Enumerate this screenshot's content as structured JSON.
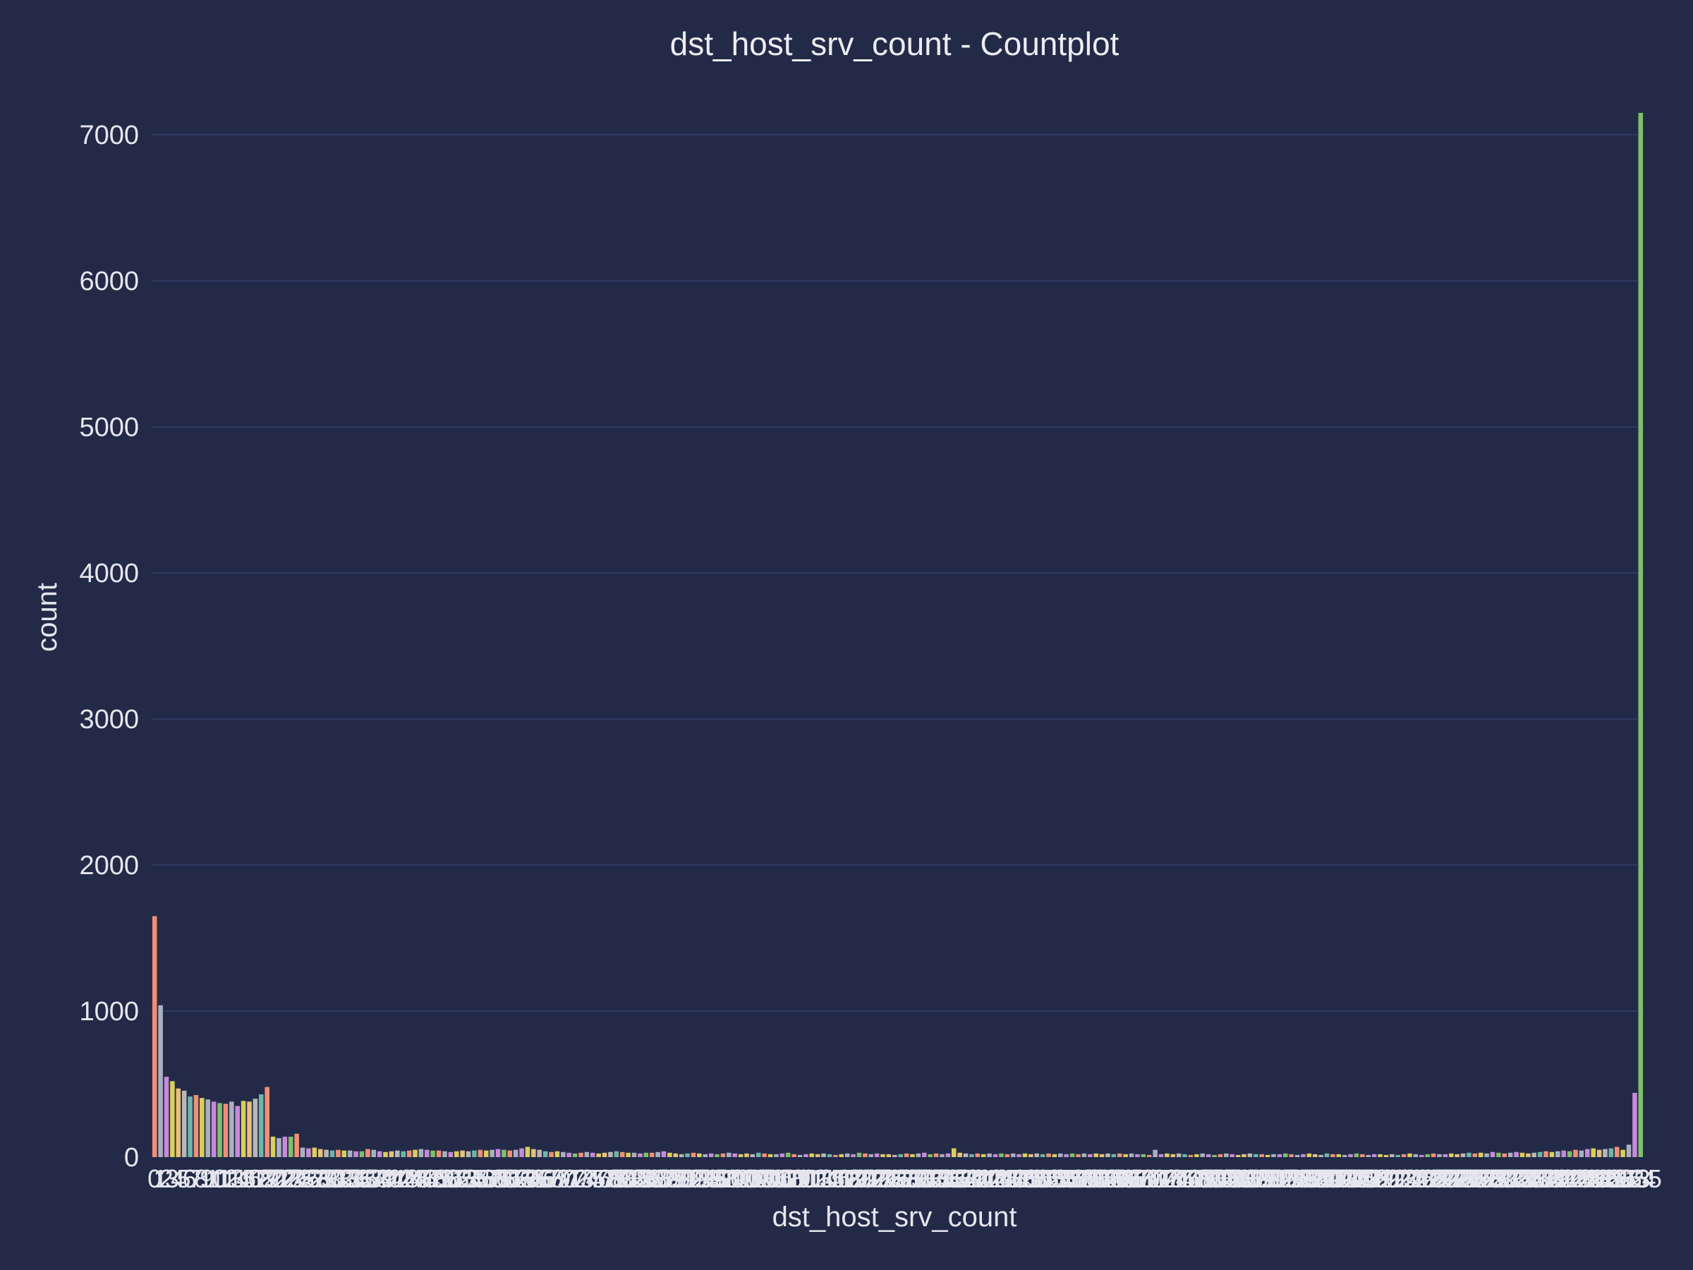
{
  "chart_data": {
    "type": "bar",
    "title": "dst_host_srv_count - Countplot",
    "xlabel": "dst_host_srv_count",
    "ylabel": "count",
    "ylim": [
      0,
      7150
    ],
    "yticks": [
      0,
      1000,
      2000,
      3000,
      4000,
      5000,
      6000,
      7000
    ],
    "grid": true,
    "legend": "none",
    "categories_range": [
      0,
      255
    ],
    "first_tick_label": "0",
    "last_tick_label": "255",
    "values": [
      1650,
      1040,
      550,
      520,
      470,
      455,
      415,
      425,
      405,
      395,
      380,
      370,
      365,
      380,
      350,
      385,
      380,
      400,
      430,
      480,
      140,
      130,
      140,
      140,
      160,
      65,
      60,
      65,
      55,
      50,
      45,
      50,
      45,
      45,
      40,
      40,
      55,
      50,
      40,
      35,
      40,
      45,
      40,
      45,
      50,
      55,
      50,
      45,
      45,
      40,
      35,
      40,
      45,
      40,
      45,
      50,
      45,
      50,
      55,
      50,
      45,
      50,
      60,
      70,
      55,
      50,
      40,
      35,
      40,
      35,
      30,
      25,
      30,
      35,
      30,
      25,
      30,
      35,
      40,
      35,
      30,
      30,
      25,
      30,
      30,
      35,
      40,
      30,
      25,
      20,
      25,
      30,
      25,
      20,
      25,
      20,
      25,
      30,
      25,
      20,
      25,
      20,
      30,
      25,
      20,
      20,
      25,
      30,
      20,
      15,
      20,
      25,
      20,
      25,
      20,
      15,
      20,
      25,
      20,
      30,
      25,
      20,
      25,
      20,
      20,
      15,
      20,
      25,
      20,
      25,
      30,
      20,
      25,
      20,
      25,
      60,
      30,
      25,
      20,
      25,
      20,
      25,
      20,
      25,
      20,
      25,
      20,
      25,
      20,
      25,
      20,
      25,
      20,
      25,
      20,
      25,
      20,
      25,
      20,
      25,
      20,
      25,
      20,
      25,
      20,
      25,
      20,
      20,
      15,
      50,
      20,
      25,
      20,
      25,
      20,
      15,
      20,
      25,
      20,
      15,
      20,
      25,
      20,
      15,
      20,
      25,
      20,
      20,
      15,
      20,
      20,
      25,
      20,
      15,
      20,
      25,
      20,
      15,
      25,
      20,
      20,
      15,
      20,
      25,
      20,
      15,
      20,
      20,
      15,
      20,
      15,
      20,
      25,
      20,
      15,
      20,
      25,
      20,
      20,
      25,
      20,
      25,
      30,
      25,
      30,
      25,
      35,
      30,
      25,
      30,
      35,
      30,
      25,
      30,
      35,
      40,
      35,
      40,
      45,
      40,
      50,
      45,
      55,
      60,
      50,
      55,
      60,
      70,
      50,
      85,
      440,
      7150
    ],
    "palette": [
      "#f08f76",
      "#a9b0c3",
      "#c88ad8",
      "#d9cf5a",
      "#e8c07a",
      "#b8b8b8",
      "#6fb6a8",
      "#f08f76",
      "#d9cf5a",
      "#a9b0c3",
      "#c88ad8",
      "#7fbf6a"
    ]
  }
}
